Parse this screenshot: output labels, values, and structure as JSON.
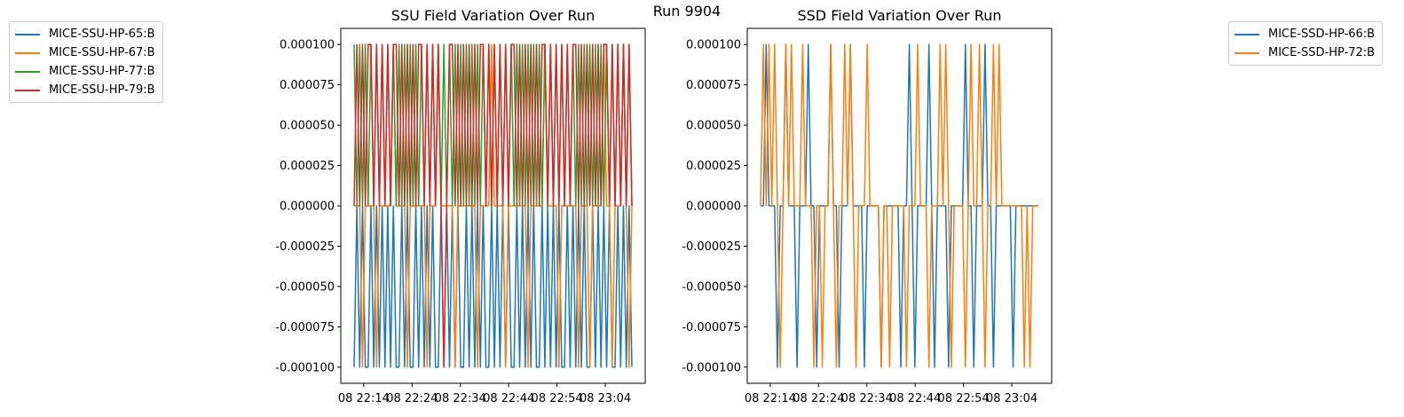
{
  "figure_title": "Run 9904",
  "chart_data": [
    {
      "type": "line",
      "title": "SSU Field Variation Over Run",
      "xlabel": "",
      "ylabel": "",
      "ylim": [
        -0.00011,
        0.00011
      ],
      "yticks": [
        "0.000100",
        "0.000075",
        "0.000050",
        "0.000025",
        "0.000000",
        "-0.000025",
        "-0.000050",
        "-0.000075",
        "-0.000100"
      ],
      "xticks": [
        "08 22:14",
        "08 22:24",
        "08 22:34",
        "08 22:44",
        "08 22:54",
        "08 23:04"
      ],
      "x_range_minutes": [
        12,
        69.5
      ],
      "legend_position": "outside-left",
      "series": [
        {
          "name": "MICE-SSU-HP-65:B",
          "color": "#1f77b4",
          "values": [
            -0.0001,
            0,
            -0.0001,
            0,
            -0.0001,
            -0.0001,
            0,
            -0.0001,
            0,
            -0.0001,
            0,
            -0.0001,
            0,
            -0.0001,
            0,
            -0.0001,
            -0.0001,
            0,
            -0.0001,
            0,
            -0.0001,
            -0.0001,
            0,
            -0.0001,
            0,
            -0.0001,
            0,
            -0.0001,
            0,
            -0.0001,
            -0.0001,
            0,
            -0.0001,
            0,
            -0.0001,
            0,
            -0.0001,
            0,
            -0.0001,
            -0.0001,
            0,
            -0.0001,
            0,
            -0.0001,
            0,
            -0.0001,
            0,
            -0.0001,
            -0.0001,
            0,
            -0.0001,
            0,
            -0.0001,
            0,
            -0.0001,
            0,
            -0.0001,
            -0.0001,
            0,
            -0.0001,
            0,
            -0.0001,
            0,
            -0.0001,
            0,
            -0.0001,
            -0.0001,
            0,
            -0.0001,
            0,
            -0.0001,
            0,
            -0.0001,
            0,
            -0.0001,
            -0.0001,
            0,
            -0.0001,
            0,
            -0.0001,
            0,
            -0.0001,
            0,
            -0.0001,
            -0.0001,
            0,
            -0.0001,
            0,
            -0.0001,
            0,
            -0.0001,
            0,
            -0.0001,
            -0.0001,
            0,
            -0.0001,
            0,
            -0.0001,
            0,
            -0.0001
          ]
        },
        {
          "name": "MICE-SSU-HP-67:B",
          "color": "#ff7f0e",
          "values": [
            0,
            0,
            0,
            -0.0001,
            0,
            0,
            0,
            0,
            -0.0001,
            0,
            0,
            0,
            0,
            0,
            0.0001,
            0,
            0,
            0,
            0,
            -0.0001,
            0,
            0,
            0,
            0,
            0,
            0,
            -0.0001,
            0,
            0,
            0,
            0.0001,
            0,
            0,
            0,
            0,
            0,
            -0.0001,
            0,
            0,
            0,
            0,
            0,
            0,
            0,
            -0.0001,
            0,
            0,
            0,
            0,
            0.0001,
            0,
            0,
            0,
            0,
            -0.0001,
            0,
            0,
            0,
            0,
            0,
            0,
            0,
            -0.0001,
            0,
            0,
            0,
            0,
            0,
            0.0001,
            0,
            0,
            0,
            0,
            -0.0001,
            0,
            0,
            0,
            0,
            0,
            0,
            -0.0001,
            0,
            0,
            0,
            -0.0001,
            0,
            0,
            0,
            0,
            0.0001,
            0,
            0,
            -0.0001,
            0,
            0,
            0,
            0.0001,
            0,
            -0.0001,
            0
          ]
        },
        {
          "name": "MICE-SSU-HP-77:B",
          "color": "#2ca02c",
          "values": [
            0.0001,
            0,
            0.0001,
            0,
            0.0001,
            0,
            0.0001,
            0,
            0.0001,
            0,
            0.0001,
            0,
            0.0001,
            0,
            0.0001,
            0,
            0.0001,
            0,
            0.0001,
            0,
            0.0001,
            0,
            0.0001,
            0,
            0.0001,
            0,
            0.0001,
            0,
            0.0001,
            0,
            0.0001,
            0,
            0.0001,
            0,
            0.0001,
            0,
            0.0001,
            0,
            0.0001,
            0,
            0.0001,
            0,
            0.0001,
            0,
            0.0001,
            0,
            0.0001,
            0,
            0.0001,
            0,
            0.0001,
            0,
            0.0001,
            0,
            0.0001,
            0,
            0.0001,
            0,
            0.0001,
            0,
            0.0001,
            0,
            0.0001,
            0,
            0.0001,
            0,
            0.0001,
            0,
            0.0001,
            0,
            0.0001,
            0,
            0.0001,
            0,
            0.0001,
            0,
            0.0001,
            0,
            0.0001,
            0,
            0.0001,
            0,
            0.0001,
            0,
            0.0001,
            0,
            0.0001,
            0,
            0.0001,
            0,
            0.0001,
            0,
            0.0001,
            0,
            0.0001,
            0,
            0.0001,
            0,
            0.0001,
            0
          ]
        },
        {
          "name": "MICE-SSU-HP-79:B",
          "color": "#d62728",
          "values": [
            0,
            0.0001,
            0,
            0.0001,
            0,
            0.0001,
            0.0001,
            0,
            0.0001,
            0,
            0.0001,
            0,
            0.0001,
            0,
            0.0001,
            0.0001,
            0,
            0.0001,
            0,
            0.0001,
            0,
            0.0001,
            0,
            0.0001,
            0.0001,
            0,
            0.0001,
            0,
            0.0001,
            0,
            0.0001,
            0,
            -0.0001,
            0,
            0.0001,
            0.0001,
            0,
            0.0001,
            0,
            0.0001,
            0,
            0.0001,
            0,
            0.0001,
            0,
            0.0001,
            0.0001,
            0,
            0.0001,
            0,
            0.0001,
            0,
            0.0001,
            0,
            0.0001,
            0,
            0.0001,
            0.0001,
            0,
            0.0001,
            0,
            0.0001,
            0,
            0.0001,
            0,
            0.0001,
            0,
            0.0001,
            0.0001,
            0,
            0.0001,
            0,
            0.0001,
            0,
            0.0001,
            0,
            0.0001,
            0,
            0.0001,
            0.0001,
            0,
            0.0001,
            0,
            0.0001,
            0,
            0.0001,
            0,
            0.0001,
            0,
            0.0001,
            0.0001,
            0,
            0.0001,
            0,
            0.0001,
            0,
            0.0001,
            0,
            0.0001,
            0
          ]
        }
      ]
    },
    {
      "type": "line",
      "title": "SSD Field Variation Over Run",
      "xlabel": "",
      "ylabel": "",
      "ylim": [
        -0.00011,
        0.00011
      ],
      "yticks": [
        "0.000100",
        "0.000075",
        "0.000050",
        "0.000025",
        "0.000000",
        "-0.000025",
        "-0.000050",
        "-0.000075",
        "-0.000100"
      ],
      "xticks": [
        "08 22:14",
        "08 22:24",
        "08 22:34",
        "08 22:44",
        "08 22:54",
        "08 23:04"
      ],
      "x_range_minutes": [
        12,
        69.5
      ],
      "legend_position": "outside-right",
      "series": [
        {
          "name": "MICE-SSD-HP-66:B",
          "color": "#1f77b4",
          "values": [
            0,
            0,
            0.0001,
            0,
            0,
            0,
            -0.0001,
            0,
            0,
            0.0001,
            0,
            0,
            0,
            -0.0001,
            0,
            0,
            0,
            0.0001,
            0,
            0,
            -0.0001,
            0,
            0,
            0,
            0,
            0.0001,
            0,
            0,
            -0.0001,
            0,
            0,
            0,
            0.0001,
            0,
            0,
            0,
            0,
            -0.0001,
            0,
            0,
            0,
            0,
            0,
            -0.0001,
            0,
            0,
            0,
            0,
            0,
            0,
            -0.0001,
            0,
            0,
            0.0001,
            0,
            -0.0001,
            0,
            0,
            0,
            0,
            0.0001,
            0,
            -0.0001,
            0,
            0,
            0,
            0,
            -0.0001,
            0,
            0,
            0,
            0,
            0,
            0.0001,
            0,
            0,
            -0.0001,
            0,
            0,
            0,
            0.0001,
            0,
            0,
            -0.0001,
            0,
            0,
            0,
            0,
            0,
            0,
            -0.0001,
            0,
            0,
            0,
            0,
            0,
            0,
            0,
            0,
            0
          ]
        },
        {
          "name": "MICE-SSD-HP-72:B",
          "color": "#ff7f0e",
          "values": [
            0,
            0.0001,
            0,
            0.0001,
            0,
            0.0001,
            0,
            -0.0001,
            0,
            0.0001,
            0,
            0.0001,
            0,
            0,
            0,
            0.0001,
            0,
            0,
            0,
            -0.0001,
            0,
            0,
            -0.0001,
            0,
            0,
            0.0001,
            0,
            -0.0001,
            0,
            0,
            0.0001,
            0,
            0.0001,
            0,
            -0.0001,
            0,
            0,
            0,
            0.0001,
            0,
            0,
            0,
            0,
            -0.0001,
            0,
            0,
            -0.0001,
            0,
            0,
            0,
            0,
            0,
            -0.0001,
            0,
            0,
            0,
            0.0001,
            0,
            0,
            0,
            -0.0001,
            0,
            0,
            0,
            0.0001,
            0,
            0.0001,
            0,
            -0.0001,
            0,
            0,
            0,
            0,
            -0.0001,
            0,
            0.0001,
            0,
            0,
            0.0001,
            0,
            -0.0001,
            0,
            0,
            0.0001,
            0,
            0.0001,
            0,
            0,
            0,
            0,
            0,
            0,
            0,
            0,
            -0.0001,
            0,
            -0.0001,
            0,
            0,
            0
          ]
        }
      ]
    }
  ]
}
